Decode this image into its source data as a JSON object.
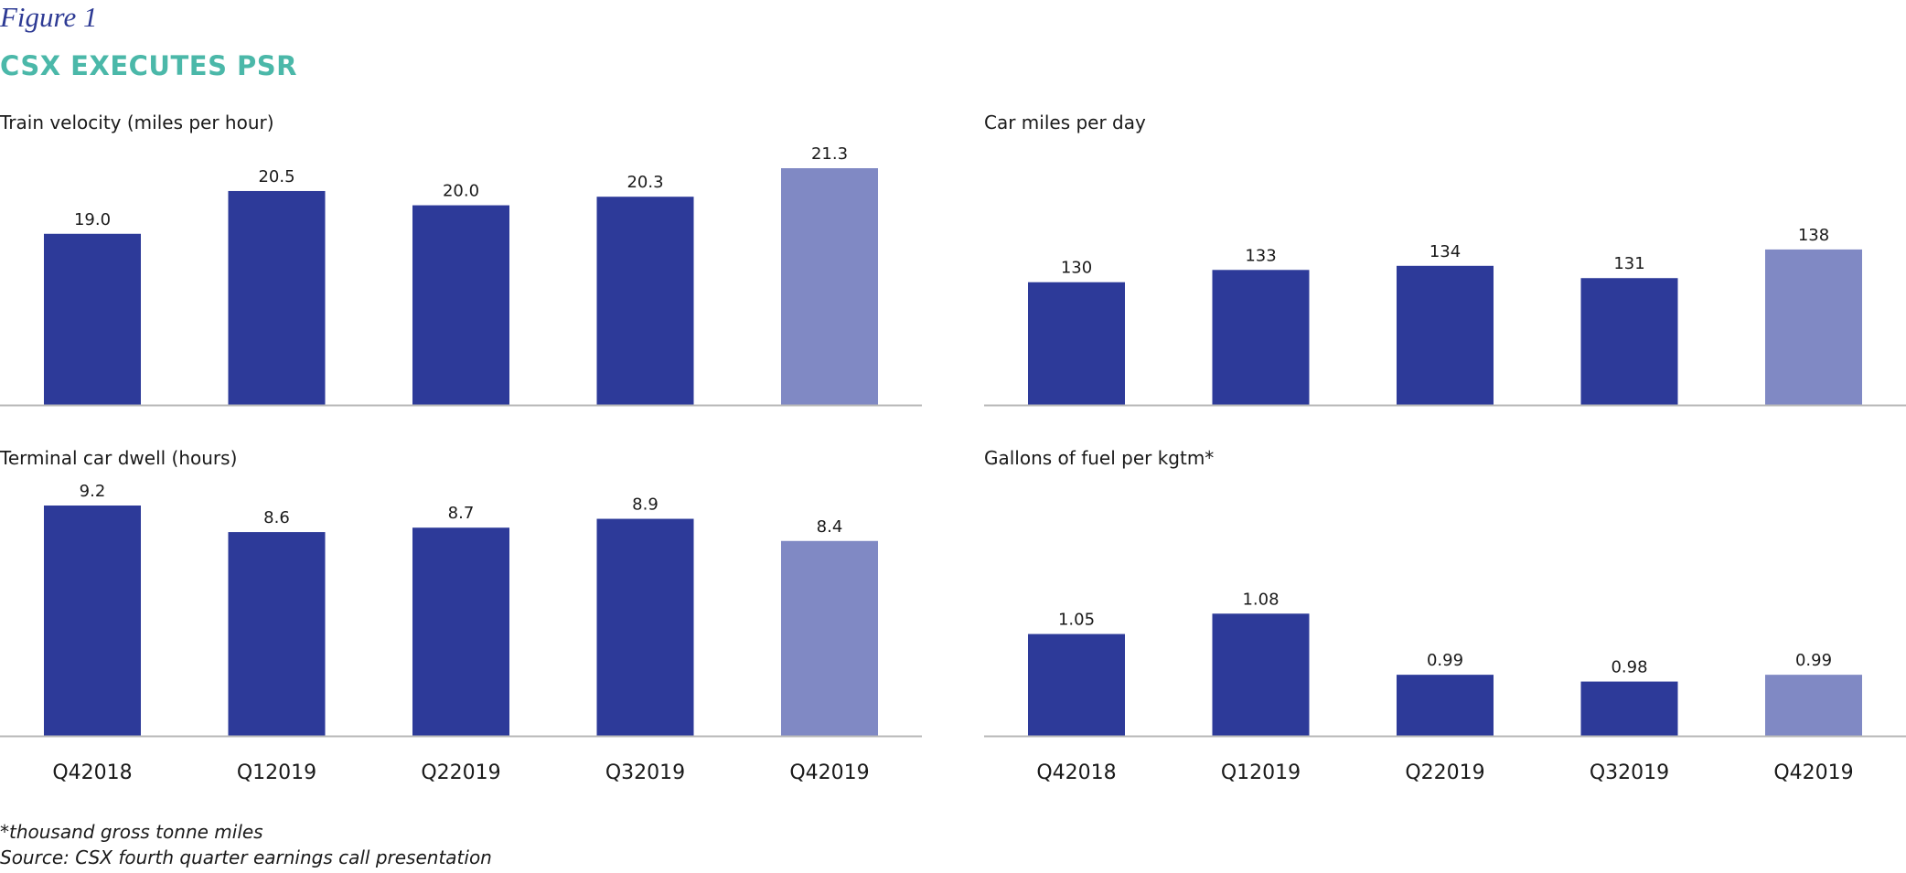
{
  "figure_label": "Figure 1",
  "figure_title": "CSX EXECUTES PSR",
  "colors": {
    "bar_primary": "#2d3a99",
    "bar_highlight": "#8089c4",
    "axis": "#b8b8b8",
    "label_title": "#4bb8a9",
    "label_figure": "#2d3a94"
  },
  "chart_data": [
    {
      "type": "bar",
      "title": "Train velocity (miles per hour)",
      "categories": [
        "Q42018",
        "Q12019",
        "Q22019",
        "Q32019",
        "Q42019"
      ],
      "values": [
        19.0,
        20.5,
        20.0,
        20.3,
        21.3
      ],
      "value_labels": [
        "19.0",
        "20.5",
        "20.0",
        "20.3",
        "21.3"
      ],
      "highlight_index": 4,
      "ylim": [
        13.0,
        21.3
      ],
      "grid": false,
      "show_category_labels": false
    },
    {
      "type": "bar",
      "title": "Car miles per day",
      "categories": [
        "Q42018",
        "Q12019",
        "Q22019",
        "Q32019",
        "Q42019"
      ],
      "values": [
        130,
        133,
        134,
        131,
        138
      ],
      "value_labels": [
        "130",
        "133",
        "134",
        "131",
        "138"
      ],
      "highlight_index": 4,
      "ylim": [
        100,
        142
      ],
      "grid": false,
      "show_category_labels": false
    },
    {
      "type": "bar",
      "title": "Terminal car dwell (hours)",
      "categories": [
        "Q42018",
        "Q12019",
        "Q22019",
        "Q32019",
        "Q42019"
      ],
      "values": [
        9.2,
        8.6,
        8.7,
        8.9,
        8.4
      ],
      "value_labels": [
        "9.2",
        "8.6",
        "8.7",
        "8.9",
        "8.4"
      ],
      "highlight_index": 4,
      "ylim": [
        4.0,
        9.2
      ],
      "grid": false,
      "show_category_labels": true
    },
    {
      "type": "bar",
      "title": "Gallons of fuel per kgtm*",
      "categories": [
        "Q42018",
        "Q12019",
        "Q22019",
        "Q32019",
        "Q42019"
      ],
      "values": [
        1.05,
        1.08,
        0.99,
        0.98,
        0.99
      ],
      "value_labels": [
        "1.05",
        "1.08",
        "0.99",
        "0.98",
        "0.99"
      ],
      "highlight_index": 4,
      "ylim": [
        0.9,
        1.145
      ],
      "grid": false,
      "show_category_labels": true
    }
  ],
  "footnotes": {
    "definition": "*thousand gross tonne miles",
    "source": "Source: CSX fourth quarter earnings call presentation"
  }
}
